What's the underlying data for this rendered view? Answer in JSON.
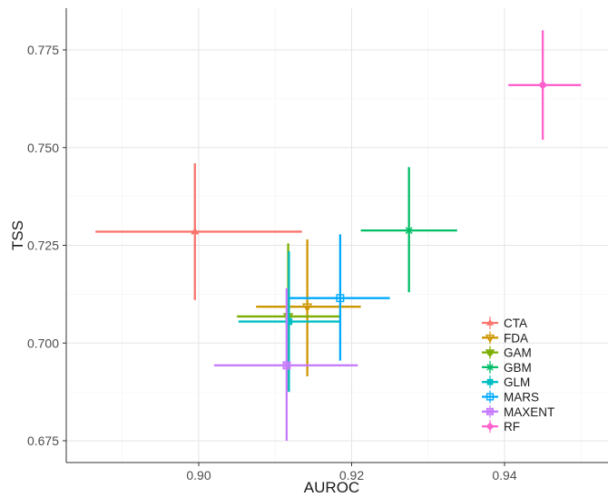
{
  "chart_data": {
    "type": "scatter",
    "title": "",
    "xlabel": "AUROC",
    "ylabel": "TSS",
    "xlim": [
      0.8855,
      0.9525
    ],
    "ylim": [
      0.6695,
      0.7865
    ],
    "x_ticks": [
      0.9,
      0.92,
      0.94
    ],
    "x_tick_labels": [
      "0.90",
      "0.92",
      "0.94"
    ],
    "y_ticks": [
      0.675,
      0.7,
      0.725,
      0.75,
      0.775
    ],
    "y_tick_labels": [
      "0.675",
      "0.700",
      "0.725",
      "0.750",
      "0.775"
    ],
    "grid": true,
    "legend_position": "bottom-right",
    "series": [
      {
        "name": "CTA",
        "color": "#F8766D",
        "marker": "triangle",
        "x": 0.8995,
        "y": 0.7285,
        "x_range": [
          0.8865,
          0.9135
        ],
        "y_range": [
          0.711,
          0.746
        ]
      },
      {
        "name": "FDA",
        "color": "#CD9600",
        "marker": "triangle-down",
        "x": 0.9142,
        "y": 0.7093,
        "x_range": [
          0.9075,
          0.9212
        ],
        "y_range": [
          0.6915,
          0.7265
        ]
      },
      {
        "name": "GAM",
        "color": "#7CAE00",
        "marker": "triangle-down-x",
        "x": 0.9117,
        "y": 0.7068,
        "x_range": [
          0.905,
          0.9185
        ],
        "y_range": [
          0.6878,
          0.7255
        ]
      },
      {
        "name": "GBM",
        "color": "#00BE67",
        "marker": "asterisk",
        "x": 0.9275,
        "y": 0.7288,
        "x_range": [
          0.9212,
          0.9338
        ],
        "y_range": [
          0.713,
          0.745
        ]
      },
      {
        "name": "GLM",
        "color": "#00BFC4",
        "marker": "square",
        "x": 0.9118,
        "y": 0.7055,
        "x_range": [
          0.9052,
          0.9185
        ],
        "y_range": [
          0.6875,
          0.7235
        ]
      },
      {
        "name": "MARS",
        "color": "#00A9FF",
        "marker": "square-open",
        "x": 0.9185,
        "y": 0.7115,
        "x_range": [
          0.9118,
          0.925
        ],
        "y_range": [
          0.6955,
          0.7278
        ]
      },
      {
        "name": "MAXENT",
        "color": "#C77CFF",
        "marker": "square-x",
        "x": 0.9115,
        "y": 0.6943,
        "x_range": [
          0.902,
          0.9208
        ],
        "y_range": [
          0.675,
          0.714
        ]
      },
      {
        "name": "RF",
        "color": "#FF61CC",
        "marker": "diamond",
        "x": 0.945,
        "y": 0.766,
        "x_range": [
          0.9405,
          0.95
        ],
        "y_range": [
          0.752,
          0.78
        ]
      }
    ]
  }
}
